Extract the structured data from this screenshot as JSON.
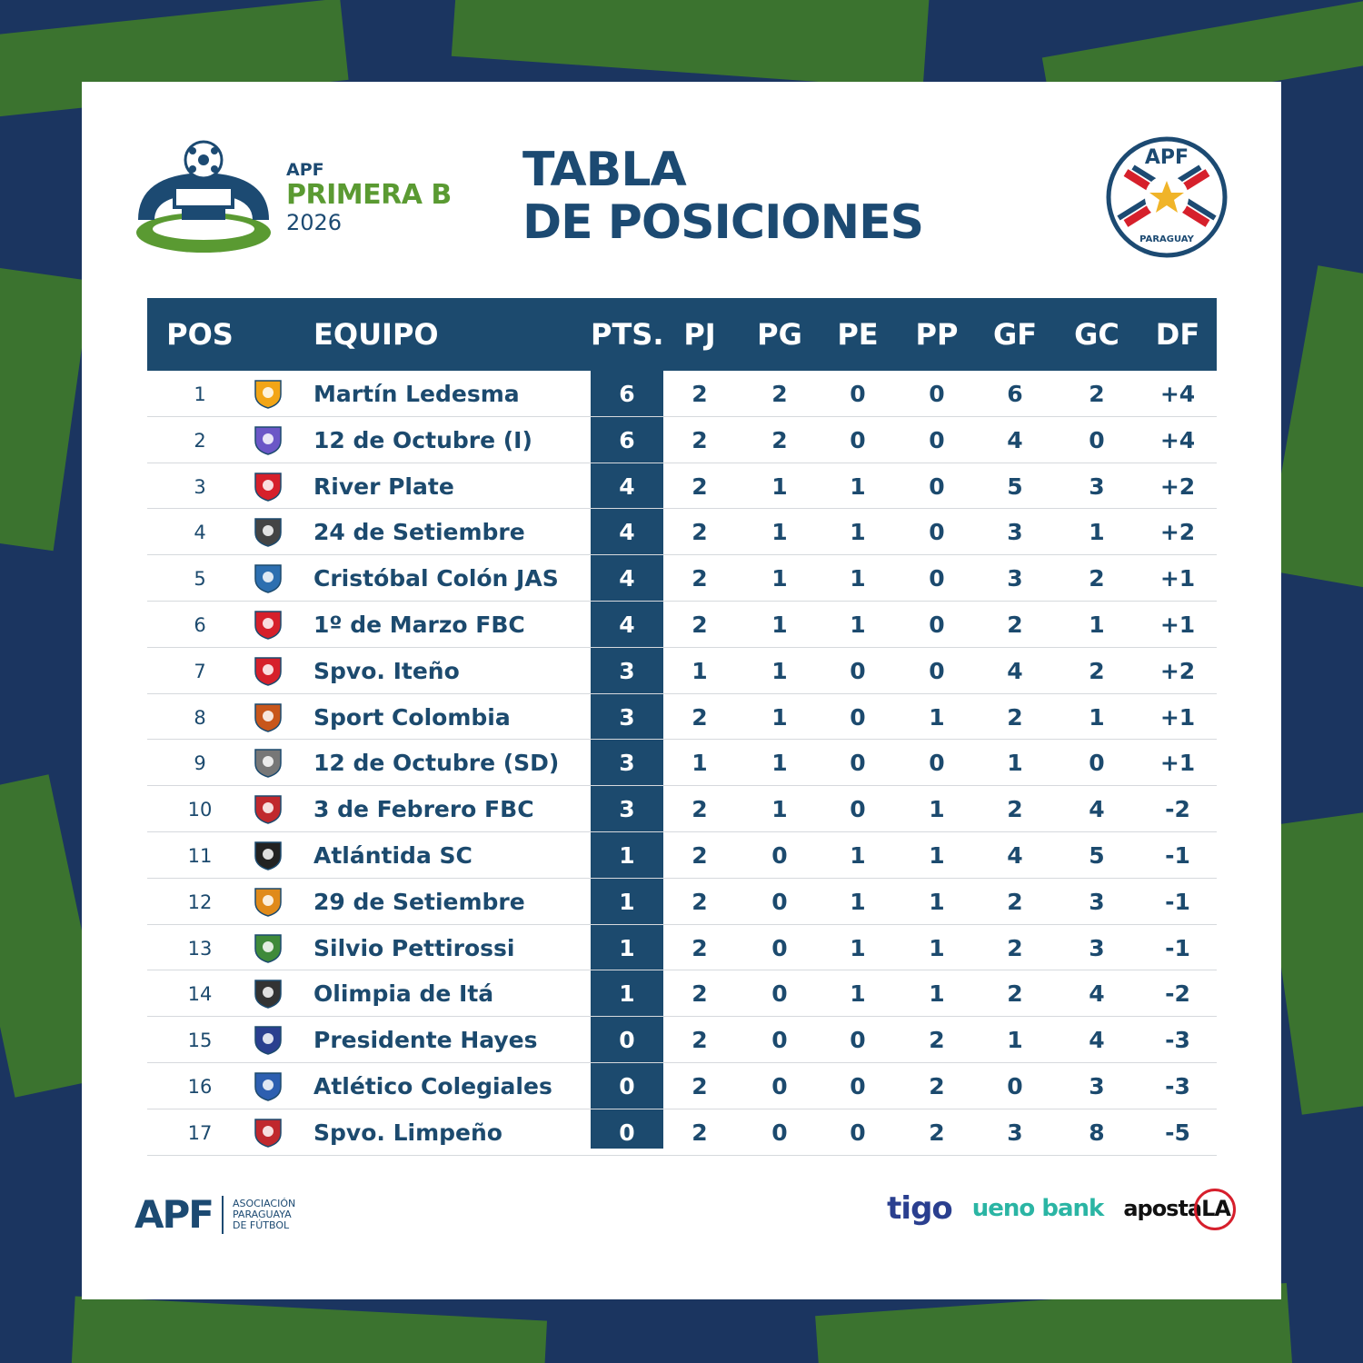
{
  "header": {
    "league_org": "APF",
    "league_name": "PRIMERA B",
    "league_year": "2026",
    "title_line1": "TABLA",
    "title_line2": "DE POSICIONES",
    "badge_text_top": "APF",
    "badge_text_bottom": "PARAGUAY"
  },
  "colors": {
    "primary": "#1c4a6e",
    "accent_green": "#5a9a32",
    "row_divider": "#d6d9dd"
  },
  "table": {
    "columns": [
      "POS",
      "EQUIPO",
      "PTS.",
      "PJ",
      "PG",
      "PE",
      "PP",
      "GF",
      "GC",
      "DF"
    ],
    "rows": [
      {
        "pos": "1",
        "team": "Martín Ledesma",
        "crest": "martin-ledesma-crest",
        "pts": "6",
        "pj": "2",
        "pg": "2",
        "pe": "0",
        "pp": "0",
        "gf": "6",
        "gc": "2",
        "df": "+4"
      },
      {
        "pos": "2",
        "team": "12 de Octubre (I)",
        "crest": "12-de-octubre-i-crest",
        "pts": "6",
        "pj": "2",
        "pg": "2",
        "pe": "0",
        "pp": "0",
        "gf": "4",
        "gc": "0",
        "df": "+4"
      },
      {
        "pos": "3",
        "team": "River Plate",
        "crest": "river-plate-crest",
        "pts": "4",
        "pj": "2",
        "pg": "1",
        "pe": "1",
        "pp": "0",
        "gf": "5",
        "gc": "3",
        "df": "+2"
      },
      {
        "pos": "4",
        "team": "24 de Setiembre",
        "crest": "24-de-setiembre-crest",
        "pts": "4",
        "pj": "2",
        "pg": "1",
        "pe": "1",
        "pp": "0",
        "gf": "3",
        "gc": "1",
        "df": "+2"
      },
      {
        "pos": "5",
        "team": "Cristóbal Colón JAS",
        "crest": "cristobal-colon-crest",
        "pts": "4",
        "pj": "2",
        "pg": "1",
        "pe": "1",
        "pp": "0",
        "gf": "3",
        "gc": "2",
        "df": "+1"
      },
      {
        "pos": "6",
        "team": "1º de Marzo FBC",
        "crest": "1-de-marzo-crest",
        "pts": "4",
        "pj": "2",
        "pg": "1",
        "pe": "1",
        "pp": "0",
        "gf": "2",
        "gc": "1",
        "df": "+1"
      },
      {
        "pos": "7",
        "team": "Spvo. Iteño",
        "crest": "spvo-iteno-crest",
        "pts": "3",
        "pj": "1",
        "pg": "1",
        "pe": "0",
        "pp": "0",
        "gf": "4",
        "gc": "2",
        "df": "+2"
      },
      {
        "pos": "8",
        "team": "Sport Colombia",
        "crest": "sport-colombia-crest",
        "pts": "3",
        "pj": "2",
        "pg": "1",
        "pe": "0",
        "pp": "1",
        "gf": "2",
        "gc": "1",
        "df": "+1"
      },
      {
        "pos": "9",
        "team": "12 de Octubre (SD)",
        "crest": "12-de-octubre-sd-crest",
        "pts": "3",
        "pj": "1",
        "pg": "1",
        "pe": "0",
        "pp": "0",
        "gf": "1",
        "gc": "0",
        "df": "+1"
      },
      {
        "pos": "10",
        "team": "3 de Febrero FBC",
        "crest": "3-de-febrero-crest",
        "pts": "3",
        "pj": "2",
        "pg": "1",
        "pe": "0",
        "pp": "1",
        "gf": "2",
        "gc": "4",
        "df": "-2"
      },
      {
        "pos": "11",
        "team": "Atlántida SC",
        "crest": "atlantida-crest",
        "pts": "1",
        "pj": "2",
        "pg": "0",
        "pe": "1",
        "pp": "1",
        "gf": "4",
        "gc": "5",
        "df": "-1"
      },
      {
        "pos": "12",
        "team": "29 de Setiembre",
        "crest": "29-de-setiembre-crest",
        "pts": "1",
        "pj": "2",
        "pg": "0",
        "pe": "1",
        "pp": "1",
        "gf": "2",
        "gc": "3",
        "df": "-1"
      },
      {
        "pos": "13",
        "team": "Silvio Pettirossi",
        "crest": "silvio-pettirossi-crest",
        "pts": "1",
        "pj": "2",
        "pg": "0",
        "pe": "1",
        "pp": "1",
        "gf": "2",
        "gc": "3",
        "df": "-1"
      },
      {
        "pos": "14",
        "team": "Olimpia de Itá",
        "crest": "olimpia-de-ita-crest",
        "pts": "1",
        "pj": "2",
        "pg": "0",
        "pe": "1",
        "pp": "1",
        "gf": "2",
        "gc": "4",
        "df": "-2"
      },
      {
        "pos": "15",
        "team": "Presidente Hayes",
        "crest": "presidente-hayes-crest",
        "pts": "0",
        "pj": "2",
        "pg": "0",
        "pe": "0",
        "pp": "2",
        "gf": "1",
        "gc": "4",
        "df": "-3"
      },
      {
        "pos": "16",
        "team": "Atlético Colegiales",
        "crest": "atletico-colegiales-crest",
        "pts": "0",
        "pj": "2",
        "pg": "0",
        "pe": "0",
        "pp": "2",
        "gf": "0",
        "gc": "3",
        "df": "-3"
      },
      {
        "pos": "17",
        "team": "Spvo. Limpeño",
        "crest": "spvo-limpeno-crest",
        "pts": "0",
        "pj": "2",
        "pg": "0",
        "pe": "0",
        "pp": "2",
        "gf": "3",
        "gc": "8",
        "df": "-5"
      }
    ]
  },
  "footer": {
    "org_short": "APF",
    "org_full_line1": "ASOCIACIÓN",
    "org_full_line2": "PARAGUAYA",
    "org_full_line3": "DE FÚTBOL",
    "sponsors": [
      "tigo",
      "ueno bank",
      "apostaLA"
    ]
  }
}
